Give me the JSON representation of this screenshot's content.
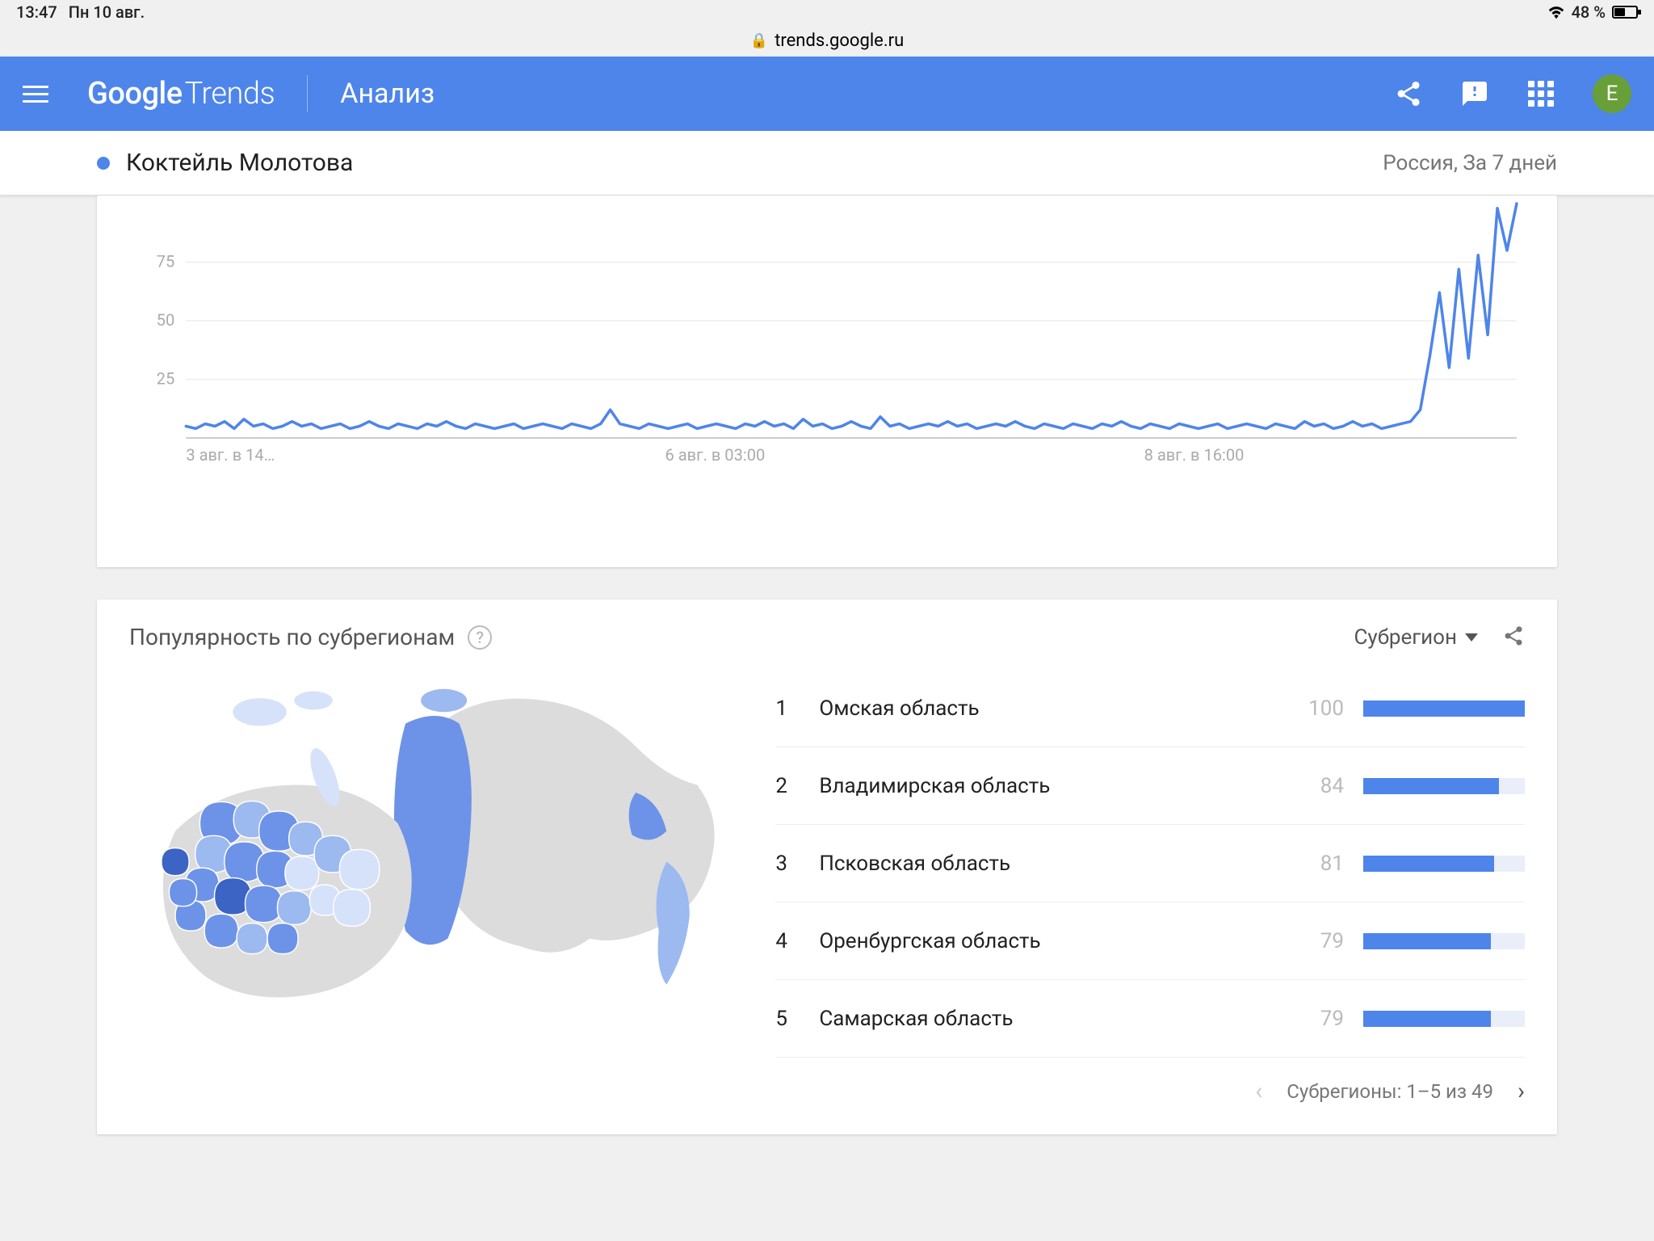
{
  "statusbar": {
    "time": "13:47",
    "date": "Пн 10 авг.",
    "battery_pct": "48 %",
    "battery_level": 48
  },
  "browser": {
    "url": "trends.google.ru"
  },
  "header": {
    "logo_primary": "Google",
    "logo_secondary": "Trends",
    "page": "Анализ",
    "avatar_initial": "E"
  },
  "subheader": {
    "term": "Коктейль Молотова",
    "term_color": "#4e85ea",
    "filters": "Россия, За 7 дней"
  },
  "chart": {
    "type": "line",
    "line_color": "#4e85ea",
    "background_color": "#ffffff",
    "grid_color": "#eeeeee",
    "axis_color": "#cccccc",
    "ylim": [
      0,
      100
    ],
    "yticks": [
      25,
      50,
      75
    ],
    "xticks": [
      {
        "pos": 0.0,
        "label": "3 авг. в 14…"
      },
      {
        "pos": 0.36,
        "label": "6 авг. в 03:00"
      },
      {
        "pos": 0.72,
        "label": "8 авг. в 16:00"
      }
    ],
    "values": [
      5,
      4,
      6,
      5,
      7,
      4,
      8,
      5,
      6,
      4,
      5,
      7,
      5,
      6,
      4,
      5,
      6,
      4,
      5,
      7,
      5,
      4,
      6,
      5,
      4,
      6,
      5,
      7,
      5,
      4,
      6,
      5,
      4,
      5,
      6,
      4,
      5,
      6,
      5,
      4,
      6,
      5,
      4,
      6,
      12,
      6,
      5,
      4,
      6,
      5,
      4,
      5,
      6,
      4,
      5,
      6,
      5,
      4,
      6,
      5,
      7,
      5,
      6,
      4,
      8,
      5,
      6,
      4,
      5,
      7,
      5,
      4,
      9,
      5,
      6,
      4,
      5,
      6,
      5,
      7,
      5,
      6,
      4,
      5,
      6,
      5,
      7,
      5,
      4,
      6,
      5,
      4,
      6,
      5,
      4,
      6,
      5,
      7,
      5,
      4,
      6,
      5,
      4,
      6,
      5,
      4,
      5,
      6,
      4,
      5,
      6,
      5,
      4,
      6,
      5,
      4,
      7,
      5,
      6,
      4,
      5,
      7,
      5,
      6,
      4,
      5,
      6,
      7,
      12,
      35,
      62,
      30,
      72,
      34,
      78,
      44,
      98,
      80,
      100
    ]
  },
  "regions": {
    "title": "Популярность по субрегионам",
    "dropdown_label": "Субрегион",
    "bar_color": "#4e85ea",
    "bar_bg": "#eaeef8",
    "items": [
      {
        "rank": "1",
        "name": "Омская область",
        "value": 100
      },
      {
        "rank": "2",
        "name": "Владимирская область",
        "value": 84
      },
      {
        "rank": "3",
        "name": "Псковская область",
        "value": 81
      },
      {
        "rank": "4",
        "name": "Оренбургская область",
        "value": 79
      },
      {
        "rank": "5",
        "name": "Самарская область",
        "value": 79
      }
    ],
    "pager_label": "Субрегионы: 1–5 из 49"
  },
  "map": {
    "region_colors": {
      "low": "#d6e2fa",
      "mid": "#9cb9f0",
      "high": "#6d93e8",
      "dark": "#3b64c4",
      "none": "#dcdcdc"
    }
  }
}
